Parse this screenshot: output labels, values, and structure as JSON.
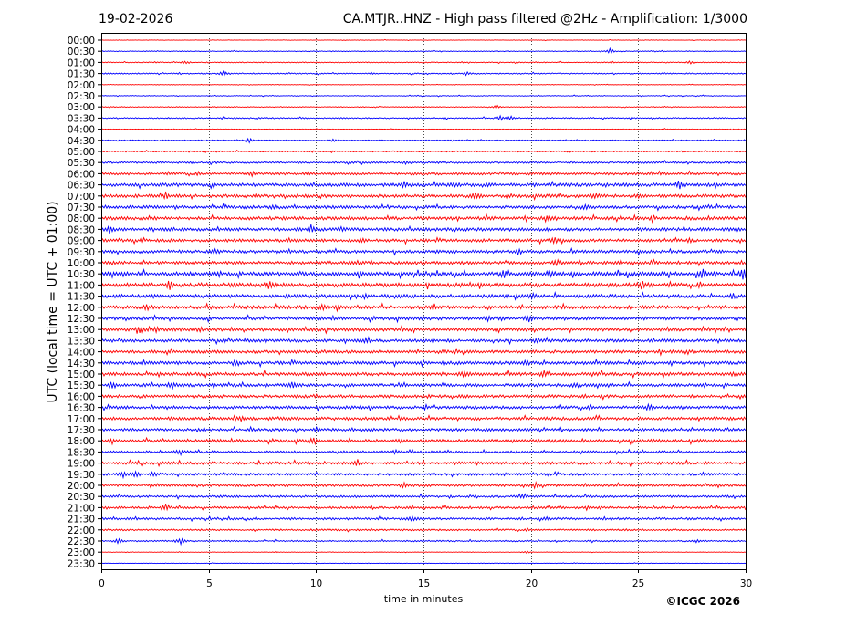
{
  "chart_data": {
    "type": "line",
    "date": "19-02-2026",
    "title": "CA.MTJR..HNZ - High pass filtered @2Hz - Amplification: 1/3000",
    "xlabel": "time in minutes",
    "ylabel": "UTC (local time = UTC + 01:00)",
    "xlim": [
      0,
      30
    ],
    "x_ticks": [
      "0",
      "5",
      "10",
      "15",
      "20",
      "25",
      "30"
    ],
    "x_tick_values": [
      0,
      5,
      10,
      15,
      20,
      25,
      30
    ],
    "grid": "vertical dotted at every 5 minutes",
    "trace_colors": [
      "#ff0000",
      "#0000ff"
    ],
    "row_labels": [
      "00:00",
      "00:30",
      "01:00",
      "01:30",
      "02:00",
      "02:30",
      "03:00",
      "03:30",
      "04:00",
      "04:30",
      "05:00",
      "05:30",
      "06:00",
      "06:30",
      "07:00",
      "07:30",
      "08:00",
      "08:30",
      "09:00",
      "09:30",
      "10:00",
      "10:30",
      "11:00",
      "11:30",
      "12:00",
      "12:30",
      "13:00",
      "13:30",
      "14:00",
      "14:30",
      "15:00",
      "15:30",
      "16:00",
      "16:30",
      "17:00",
      "17:30",
      "18:00",
      "18:30",
      "19:00",
      "19:30",
      "20:00",
      "20:30",
      "21:00",
      "21:30",
      "22:00",
      "22:30",
      "23:00",
      "23:30"
    ],
    "noise_level": [
      0.2,
      0.3,
      0.4,
      0.5,
      0.2,
      0.3,
      0.3,
      0.5,
      0.3,
      0.4,
      0.5,
      0.8,
      1.0,
      1.3,
      1.3,
      1.2,
      1.3,
      1.3,
      1.2,
      1.2,
      1.2,
      1.6,
      1.6,
      1.4,
      1.4,
      1.3,
      1.3,
      1.2,
      1.2,
      1.3,
      1.3,
      1.2,
      1.2,
      1.2,
      1.2,
      1.1,
      1.2,
      1.0,
      1.1,
      1.0,
      1.0,
      0.9,
      0.9,
      0.9,
      0.7,
      0.6,
      0.2,
      0.2
    ],
    "events": [
      [],
      [
        [
          23.7,
          3
        ]
      ],
      [
        [
          3.9,
          1.5
        ],
        [
          27.4,
          2
        ]
      ],
      [
        [
          5.7,
          4
        ],
        [
          17,
          1.5
        ]
      ],
      [],
      [],
      [
        [
          18.4,
          2
        ]
      ],
      [
        [
          18.6,
          2
        ],
        [
          19.1,
          2
        ]
      ],
      [],
      [
        [
          6.9,
          2
        ],
        [
          10.8,
          1.5
        ]
      ],
      [],
      [
        [
          14.2,
          1.2
        ]
      ],
      [
        [
          7,
          2.5
        ]
      ],
      [
        [
          14.1,
          3
        ],
        [
          26.9,
          4
        ],
        [
          16.5,
          2
        ]
      ],
      [
        [
          3,
          3
        ],
        [
          17.4,
          4
        ],
        [
          23,
          2
        ]
      ],
      [
        [
          8,
          2
        ],
        [
          22.5,
          2
        ]
      ],
      [
        [
          20.8,
          3
        ],
        [
          25.7,
          2
        ]
      ],
      [
        [
          0.4,
          3
        ],
        [
          9.8,
          5
        ],
        [
          11.2,
          2
        ]
      ],
      [
        [
          12.2,
          2
        ],
        [
          21.1,
          3
        ],
        [
          27.4,
          2.5
        ]
      ],
      [
        [
          5.3,
          2
        ],
        [
          19.4,
          3
        ]
      ],
      [
        [
          12,
          2
        ],
        [
          21.2,
          3
        ]
      ],
      [
        [
          12,
          3
        ],
        [
          18.8,
          5
        ],
        [
          20.9,
          3
        ],
        [
          28,
          5
        ],
        [
          29.9,
          6
        ]
      ],
      [
        [
          3.2,
          4
        ],
        [
          7.8,
          4
        ],
        [
          25.2,
          4
        ]
      ],
      [
        [
          12.3,
          2
        ],
        [
          20.1,
          2.5
        ],
        [
          29.4,
          2.5
        ]
      ],
      [
        [
          2.1,
          3
        ],
        [
          10.3,
          3
        ]
      ],
      [
        [
          18,
          3
        ],
        [
          19.9,
          3
        ]
      ],
      [
        [
          1.8,
          3
        ],
        [
          2.5,
          2.5
        ],
        [
          4.6,
          2
        ]
      ],
      [
        [
          12.3,
          2
        ],
        [
          20.3,
          2.5
        ]
      ],
      [
        [
          15.9,
          2
        ],
        [
          27.3,
          2
        ]
      ],
      [
        [
          6.2,
          2
        ],
        [
          19.7,
          2.5
        ]
      ],
      [
        [
          16.9,
          3
        ],
        [
          20.6,
          3
        ],
        [
          29.5,
          2
        ]
      ],
      [
        [
          0.5,
          4
        ],
        [
          3.3,
          2.5
        ],
        [
          8.9,
          3
        ],
        [
          22.1,
          2.5
        ]
      ],
      [],
      [
        [
          15.1,
          2
        ],
        [
          25.5,
          2.5
        ]
      ],
      [
        [
          6.5,
          3
        ]
      ],
      [
        [
          10,
          2
        ]
      ],
      [
        [
          0.5,
          2
        ],
        [
          9.9,
          3
        ]
      ],
      [
        [
          3.6,
          2.5
        ],
        [
          13.7,
          2
        ]
      ],
      [
        [
          11.9,
          2.5
        ]
      ],
      [
        [
          1,
          3
        ],
        [
          1.6,
          2.5
        ],
        [
          2.4,
          2
        ]
      ],
      [
        [
          14.1,
          2.5
        ],
        [
          20.2,
          2.5
        ]
      ],
      [
        [
          19.5,
          2
        ]
      ],
      [
        [
          3,
          3
        ],
        [
          22.6,
          2
        ]
      ],
      [
        [
          14.5,
          2
        ],
        [
          20.8,
          2
        ]
      ],
      [],
      [
        [
          0.8,
          2.5
        ],
        [
          3.7,
          3
        ],
        [
          27.7,
          2
        ]
      ],
      [
        [
          19.8,
          1.5
        ]
      ],
      []
    ]
  },
  "footer": {
    "copyright": "©ICGC 2026"
  }
}
